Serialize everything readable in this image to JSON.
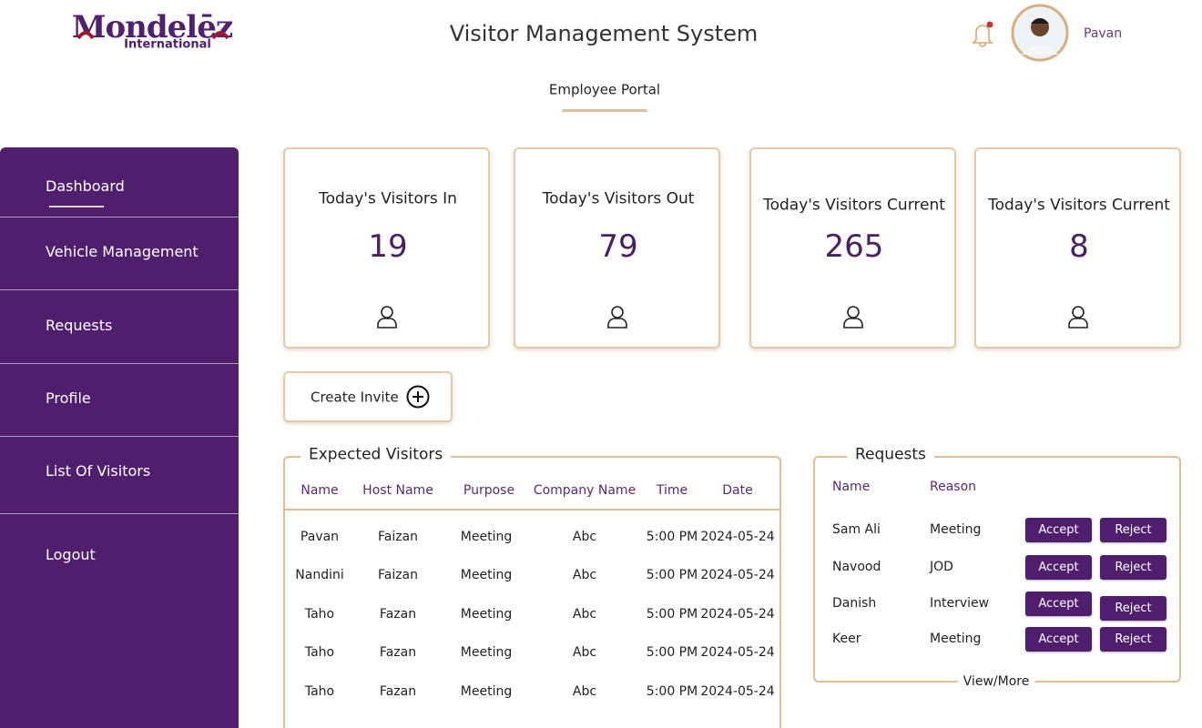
{
  "header": {
    "logo_main": "Mondelēz",
    "logo_sub": "International",
    "title": "Visitor Management System",
    "user": "Pavan",
    "portal": "Employee Portal"
  },
  "sidebar": [
    "Dashboard",
    "Vehicle Management",
    "Requests",
    "Profile",
    "List Of Visitors",
    "Logout"
  ],
  "stats": [
    {
      "label": "Today's Visitors In",
      "value": 19
    },
    {
      "label": "Today's Visitors Out",
      "value": 79
    },
    {
      "label": "Today's Visitors Current",
      "value": 265
    },
    {
      "label": "Today's Visitors Current",
      "value": 8
    }
  ],
  "create_invite": "Create Invite",
  "expected": {
    "title": "Expected Visitors",
    "columns": [
      "Name",
      "Host Name",
      "Purpose",
      "Company Name",
      "Time",
      "Date"
    ],
    "rows": [
      [
        "Pavan",
        "Faizan",
        "Meeting",
        "Abc",
        "5:00 PM",
        "2024-05-24"
      ],
      [
        "Nandini",
        "Faizan",
        "Meeting",
        "Abc",
        "5:00 PM",
        "2024-05-24"
      ],
      [
        "Taho",
        "Fazan",
        "Meeting",
        "Abc",
        "5:00 PM",
        "2024-05-24"
      ],
      [
        "Taho",
        "Fazan",
        "Meeting",
        "Abc",
        "5:00 PM",
        "2024-05-24"
      ],
      [
        "Taho",
        "Fazan",
        "Meeting",
        "Abc",
        "5:00 PM",
        "2024-05-24"
      ]
    ]
  },
  "requests": {
    "title": "Requests",
    "columns": [
      "Name",
      "Reason"
    ],
    "rows": [
      [
        "Sam Ali",
        "Meeting"
      ],
      [
        "Navood",
        "JOD"
      ],
      [
        "Danish",
        "Interview"
      ],
      [
        "Keer",
        "Meeting"
      ]
    ],
    "accept": "Accept",
    "reject": "Reject",
    "more": "View/More"
  }
}
